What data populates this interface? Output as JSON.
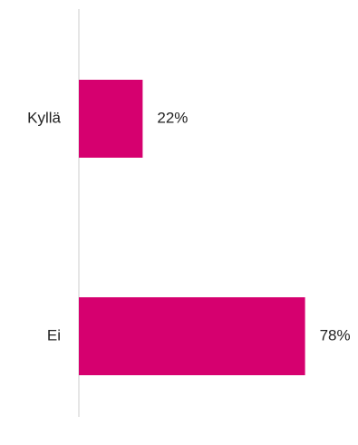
{
  "chart_data": {
    "type": "bar",
    "orientation": "horizontal",
    "categories": [
      "Kyllä",
      "Ei"
    ],
    "values": [
      22,
      78
    ],
    "data_labels": [
      "22%",
      "78%"
    ],
    "title": "",
    "xlabel": "",
    "ylabel": "",
    "xlim": [
      0,
      100
    ],
    "grid": false,
    "legend": "none",
    "colors": {
      "bar": "#d6006f",
      "axis": "#cccccc",
      "text": "#222222"
    }
  }
}
